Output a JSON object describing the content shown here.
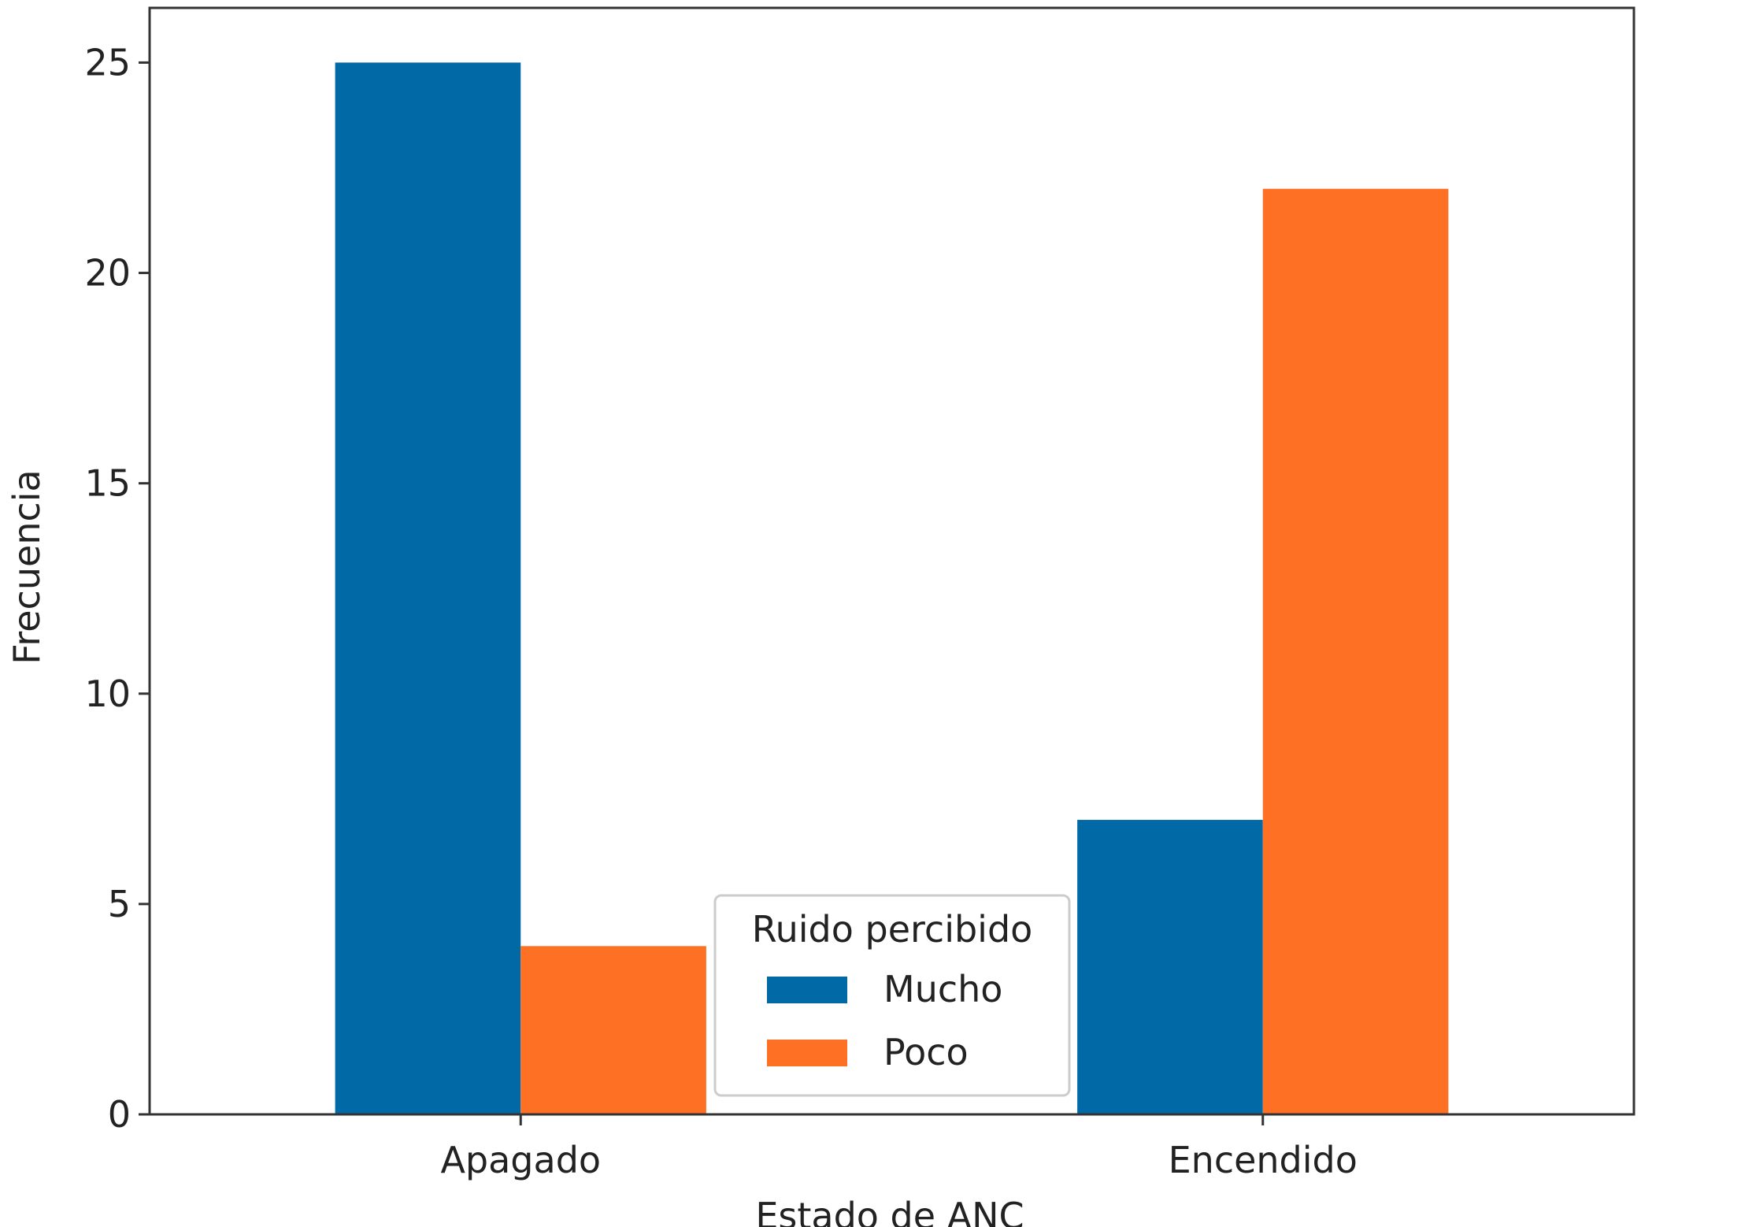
{
  "chart_data": {
    "type": "bar",
    "categories": [
      "Apagado",
      "Encendido"
    ],
    "series": [
      {
        "name": "Mucho",
        "values": [
          25,
          7
        ],
        "color": "#016aa6"
      },
      {
        "name": "Poco",
        "values": [
          4,
          22
        ],
        "color": "#fe7124"
      }
    ],
    "title": "",
    "xlabel": "Estado de ANC",
    "ylabel": "Frecuencia",
    "ylim": [
      0,
      26.3
    ],
    "yticks": [
      0,
      5,
      10,
      15,
      20,
      25
    ],
    "grid": false,
    "legend": {
      "title": "Ruido percibido",
      "placement": "lower center"
    }
  }
}
